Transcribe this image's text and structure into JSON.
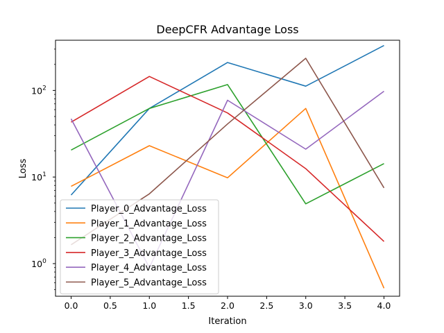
{
  "chart_data": {
    "type": "line",
    "title": "DeepCFR Advantage Loss",
    "xlabel": "Iteration",
    "ylabel": "Loss",
    "x": [
      0,
      1,
      2,
      3,
      4
    ],
    "xlim": [
      -0.2,
      4.2
    ],
    "xticks": [
      "0.0",
      "0.5",
      "1.0",
      "1.5",
      "2.0",
      "2.5",
      "3.0",
      "3.5",
      "4.0"
    ],
    "y_scale": "log",
    "ylim": [
      0.42,
      380
    ],
    "yticks": [
      {
        "base": "10",
        "exp": "0"
      },
      {
        "base": "10",
        "exp": "1"
      },
      {
        "base": "10",
        "exp": "2"
      }
    ],
    "grid": false,
    "legend_position": "lower-left",
    "series": [
      {
        "name": "Player_0_Advantage_Loss",
        "color": "#1f77b4",
        "values": [
          6.2,
          62,
          210,
          112,
          330
        ]
      },
      {
        "name": "Player_1_Advantage_Loss",
        "color": "#ff7f0e",
        "values": [
          7.8,
          23,
          9.8,
          62,
          0.52
        ]
      },
      {
        "name": "Player_2_Advantage_Loss",
        "color": "#2ca02c",
        "values": [
          20.5,
          62,
          117,
          4.9,
          14.3
        ]
      },
      {
        "name": "Player_3_Advantage_Loss",
        "color": "#d62728",
        "values": [
          43,
          145,
          55,
          12.5,
          1.8
        ]
      },
      {
        "name": "Player_4_Advantage_Loss",
        "color": "#9467bd",
        "values": [
          47,
          0.9,
          77,
          21,
          98
        ]
      },
      {
        "name": "Player_5_Advantage_Loss",
        "color": "#8c564b",
        "values": [
          1.65,
          6.4,
          41,
          235,
          7.5
        ]
      }
    ]
  }
}
